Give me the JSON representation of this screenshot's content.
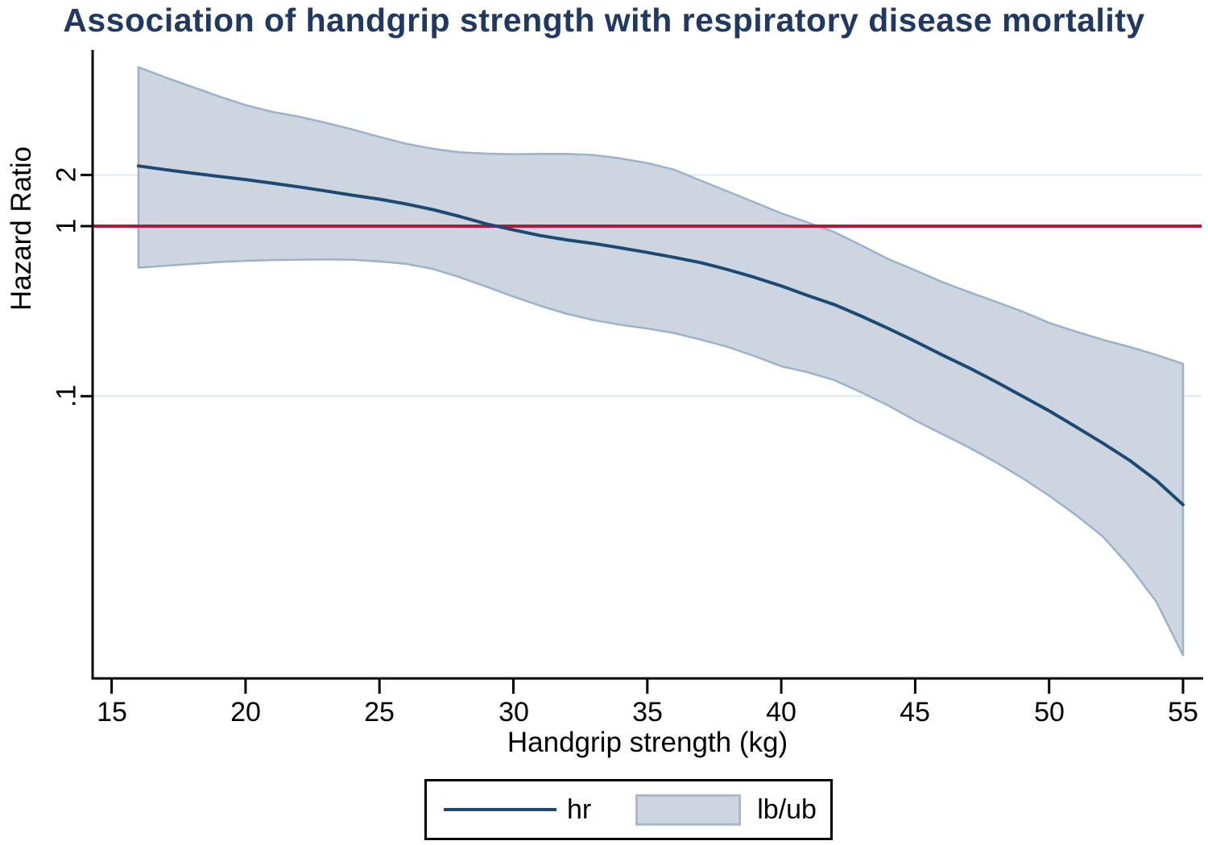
{
  "title": "Association of handgrip strength with respiratory disease mortality",
  "axes": {
    "x": {
      "label": "Handgrip strength (kg)",
      "ticks": [
        {
          "label": "15",
          "value": 15
        },
        {
          "label": "20",
          "value": 20
        },
        {
          "label": "25",
          "value": 25
        },
        {
          "label": "30",
          "value": 30
        },
        {
          "label": "35",
          "value": 35
        },
        {
          "label": "40",
          "value": 40
        },
        {
          "label": "45",
          "value": 45
        },
        {
          "label": "50",
          "value": 50
        },
        {
          "label": "55",
          "value": 55
        }
      ]
    },
    "y": {
      "label": "Hazard Ratio",
      "scale": "log",
      "ticks": [
        {
          "label": "2",
          "value": 2
        },
        {
          "label": "1",
          "value": 1
        },
        {
          "label": ".1",
          "value": 0.1
        }
      ]
    }
  },
  "legend": {
    "items": [
      {
        "label": "hr",
        "type": "line"
      },
      {
        "label": "lb/ub",
        "type": "band"
      }
    ]
  },
  "colors": {
    "title": "#1f3864",
    "hr_line": "#1d4a72",
    "band_fill": "#cdd5e1",
    "band_edge": "#9db2c8",
    "reference_line": "#bf1238",
    "gridline": "#dfe9f1",
    "axis": "#000000"
  },
  "chart_data": {
    "type": "line",
    "title": "Association of handgrip strength with respiratory disease mortality",
    "xlabel": "Handgrip strength (kg)",
    "ylabel": "Hazard Ratio",
    "yscale": "log",
    "xlim": [
      14.3,
      55.7
    ],
    "x_tick_values": [
      15,
      20,
      25,
      30,
      35,
      40,
      45,
      50,
      55
    ],
    "y_tick_values": [
      2,
      1,
      0.1
    ],
    "reference_line_y": 1,
    "grid": "horizontal-only",
    "legend_position": "bottom-center",
    "x": [
      16,
      17,
      18,
      19,
      20,
      21,
      22,
      23,
      24,
      25,
      26,
      27,
      28,
      29,
      30,
      31,
      32,
      33,
      34,
      35,
      36,
      37,
      38,
      39,
      40,
      41,
      42,
      43,
      44,
      45,
      46,
      47,
      48,
      49,
      50,
      51,
      52,
      53,
      54,
      55
    ],
    "series": [
      {
        "name": "hr",
        "style": "solid-line",
        "values": [
          2.26,
          2.15,
          2.05,
          1.96,
          1.88,
          1.79,
          1.7,
          1.61,
          1.52,
          1.44,
          1.35,
          1.25,
          1.14,
          1.03,
          0.95,
          0.88,
          0.83,
          0.79,
          0.745,
          0.7,
          0.655,
          0.61,
          0.555,
          0.5,
          0.445,
          0.39,
          0.345,
          0.295,
          0.25,
          0.21,
          0.175,
          0.147,
          0.122,
          0.1,
          0.082,
          0.066,
          0.053,
          0.042,
          0.032,
          0.023
        ]
      },
      {
        "name": "ub",
        "style": "band-upper",
        "values": [
          8.6,
          7.5,
          6.6,
          5.8,
          5.15,
          4.7,
          4.4,
          4.05,
          3.7,
          3.35,
          3.05,
          2.85,
          2.72,
          2.67,
          2.65,
          2.66,
          2.66,
          2.62,
          2.5,
          2.35,
          2.15,
          1.85,
          1.6,
          1.38,
          1.19,
          1.05,
          0.92,
          0.77,
          0.64,
          0.55,
          0.47,
          0.41,
          0.36,
          0.315,
          0.27,
          0.24,
          0.215,
          0.195,
          0.175,
          0.155
        ]
      },
      {
        "name": "lb",
        "style": "band-lower",
        "values": [
          0.57,
          0.585,
          0.6,
          0.615,
          0.625,
          0.632,
          0.635,
          0.637,
          0.635,
          0.62,
          0.6,
          0.56,
          0.5,
          0.44,
          0.385,
          0.34,
          0.305,
          0.28,
          0.263,
          0.25,
          0.235,
          0.215,
          0.195,
          0.172,
          0.15,
          0.138,
          0.124,
          0.105,
          0.088,
          0.072,
          0.06,
          0.05,
          0.041,
          0.033,
          0.026,
          0.02,
          0.015,
          0.01,
          0.0062,
          0.003
        ]
      }
    ]
  }
}
